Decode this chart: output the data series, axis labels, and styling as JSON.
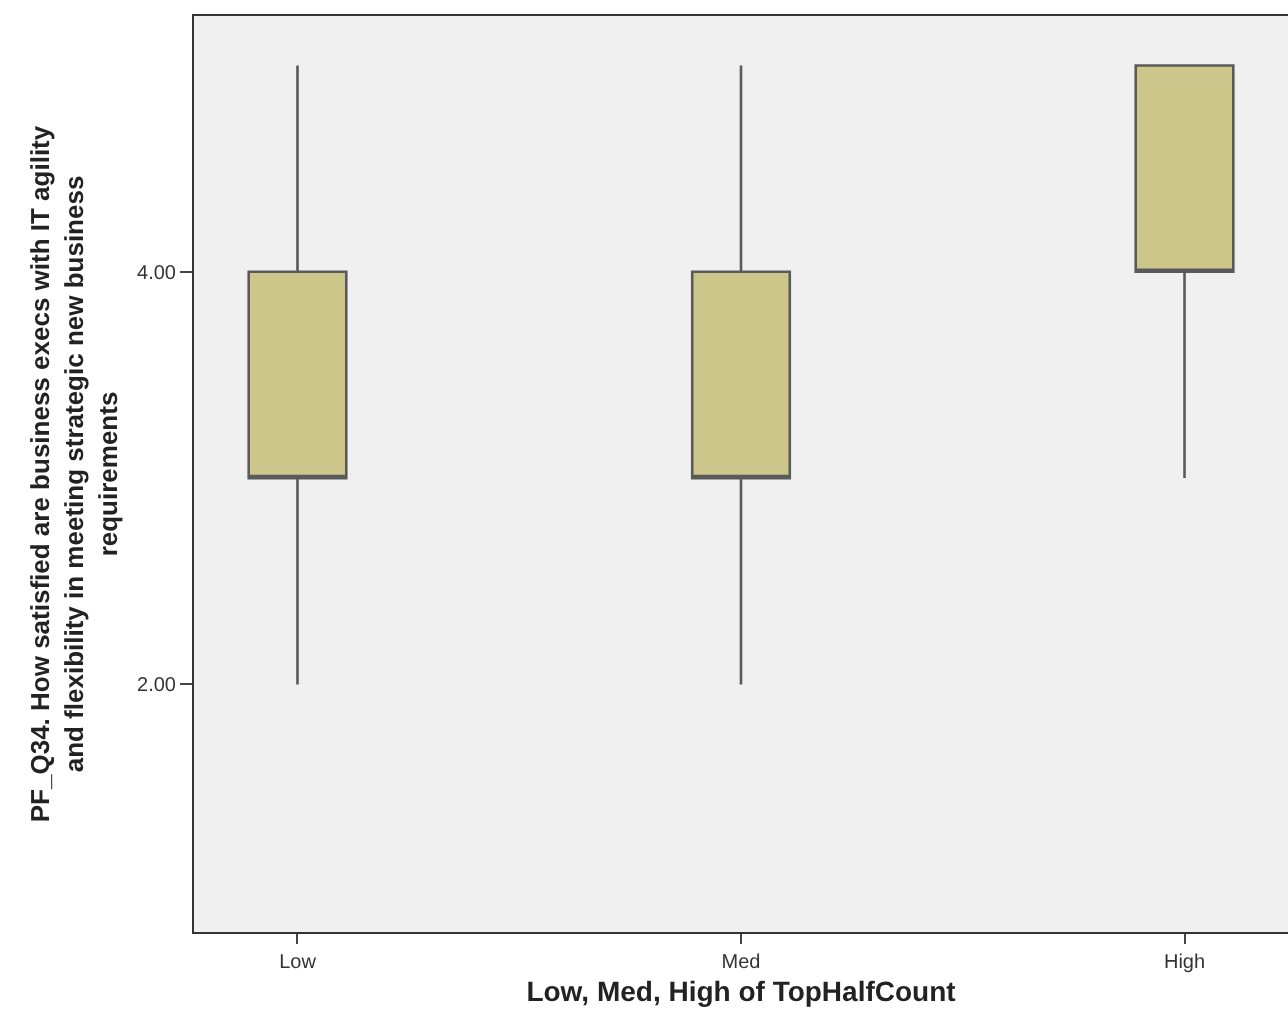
{
  "chart_data": {
    "type": "box",
    "xlabel": "Low, Med, High of TopHalfCount",
    "ylabel": "PF_Q34. How satisfied are business execs with IT agility and flexibility in meeting strategic new business requirements",
    "categories": [
      "Low",
      "Med",
      "High"
    ],
    "boxes": [
      {
        "low": 2,
        "q1": 3,
        "median": 3,
        "q3": 4,
        "high": 5
      },
      {
        "low": 2,
        "q1": 3,
        "median": 3,
        "q3": 4,
        "high": 5
      },
      {
        "low": 3,
        "q1": 4,
        "median": 4,
        "q3": 5,
        "high": 5
      }
    ],
    "color": "#ccc68a",
    "ylim": [
      0.8,
      5.24
    ],
    "yticks": [
      {
        "value": 2,
        "label": "2.00"
      },
      {
        "value": 4,
        "label": "4.00"
      }
    ],
    "grid": false,
    "legend": false
  }
}
